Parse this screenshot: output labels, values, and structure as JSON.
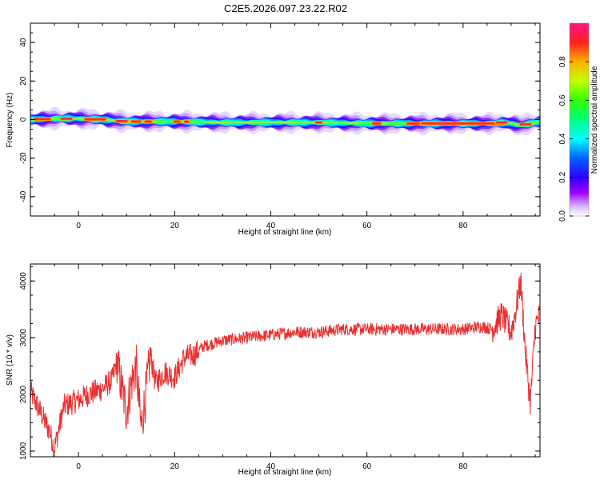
{
  "title": "C2E5.2026.097.23.22.R02",
  "chart_data": [
    {
      "type": "heatmap",
      "xlabel": "Height of straight line (km)",
      "ylabel": "Frequency (Hz)",
      "xlim": [
        -10,
        96
      ],
      "ylim": [
        -50,
        50
      ],
      "xticks": [
        "0",
        "20",
        "40",
        "60",
        "80"
      ],
      "xtick_values": [
        0,
        20,
        40,
        60,
        80
      ],
      "yticks": [
        "40",
        "20",
        "0",
        "-20",
        "-40"
      ],
      "ytick_values": [
        40,
        20,
        0,
        -20,
        -40
      ],
      "band_center_hz": [
        [
          -10,
          0
        ],
        [
          -5,
          0.5
        ],
        [
          0,
          0.5
        ],
        [
          5,
          0
        ],
        [
          10,
          -1
        ],
        [
          20,
          -1
        ],
        [
          30,
          -1.5
        ],
        [
          40,
          -1.5
        ],
        [
          50,
          -1.5
        ],
        [
          60,
          -2
        ],
        [
          70,
          -2
        ],
        [
          80,
          -2
        ],
        [
          86,
          -2
        ],
        [
          88,
          -1.5
        ],
        [
          90,
          -2
        ],
        [
          92,
          -3
        ],
        [
          94,
          -2
        ],
        [
          96,
          -1
        ]
      ],
      "colorbar": {
        "label": "Normalized spectral amplitude",
        "ticks": [
          "0.0",
          "0.2",
          "0.4",
          "0.6",
          "0.8"
        ],
        "tick_values": [
          0.0,
          0.2,
          0.4,
          0.6,
          0.8
        ],
        "range": [
          0,
          1
        ]
      }
    },
    {
      "type": "line",
      "xlabel": "Height of straight line (km)",
      "ylabel": "SNR (10 * v/v)",
      "xlim": [
        -10,
        96
      ],
      "ylim": [
        900,
        4300
      ],
      "xticks": [
        "0",
        "20",
        "40",
        "60",
        "80"
      ],
      "xtick_values": [
        0,
        20,
        40,
        60,
        80
      ],
      "yticks": [
        "4000",
        "3000",
        "2000",
        "1000"
      ],
      "ytick_values": [
        4000,
        3000,
        2000,
        1000
      ],
      "line_color": "#e83030",
      "series": [
        {
          "name": "SNR",
          "x": [
            -10,
            -8,
            -6,
            -5,
            -3,
            0,
            2,
            5,
            7,
            8,
            9,
            10,
            11,
            12,
            13,
            14,
            15,
            16,
            18,
            20,
            22,
            24,
            26,
            28,
            30,
            35,
            40,
            45,
            50,
            55,
            60,
            65,
            70,
            75,
            80,
            84,
            86,
            88,
            90,
            91,
            92,
            93,
            94,
            95,
            96
          ],
          "values": [
            2050,
            1700,
            1350,
            1050,
            1800,
            1900,
            2000,
            2100,
            2250,
            2600,
            2100,
            1700,
            2200,
            2500,
            1400,
            2000,
            2700,
            2200,
            2400,
            2300,
            2650,
            2700,
            2850,
            2900,
            2950,
            3000,
            3050,
            3100,
            3100,
            3150,
            3150,
            3150,
            3150,
            3150,
            3150,
            3200,
            3150,
            3400,
            3100,
            3500,
            4000,
            2700,
            1850,
            3200,
            3400
          ]
        }
      ]
    }
  ]
}
